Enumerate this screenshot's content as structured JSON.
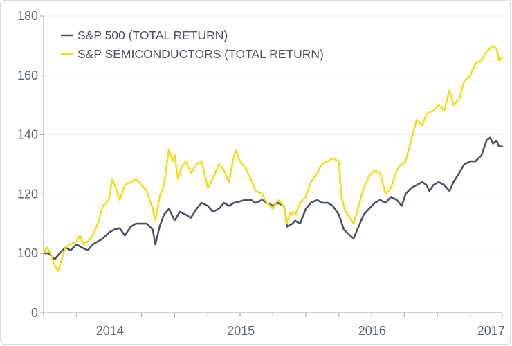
{
  "chart_data": {
    "type": "line",
    "title": "",
    "xlabel": "",
    "ylabel": "",
    "ylim": [
      0,
      180
    ],
    "xlim": [
      "2013-10-01",
      "2017-03-31"
    ],
    "axis_break": "between 0 and 100 on y-axis",
    "y_ticks": [
      "0",
      "100",
      "120",
      "140",
      "160",
      "180"
    ],
    "y_tick_values": [
      0,
      100,
      120,
      140,
      160,
      180
    ],
    "x_tick_labels": [
      {
        "label": "2014",
        "date": "2014-01-01"
      },
      {
        "label": "2015",
        "date": "2015-01-01"
      },
      {
        "label": "2016",
        "date": "2016-01-01"
      },
      {
        "label": "2017",
        "date": "2017-01-01"
      }
    ],
    "legend_placement": "top-left",
    "grid": "horizontal",
    "series": [
      {
        "name": "S&P 500 (TOTAL RETURN)",
        "color": "#4a5366",
        "points": [
          [
            "2013-10-01",
            100
          ],
          [
            "2013-10-15",
            100
          ],
          [
            "2013-11-01",
            98
          ],
          [
            "2013-11-15",
            100
          ],
          [
            "2013-12-01",
            102
          ],
          [
            "2013-12-15",
            101
          ],
          [
            "2014-01-01",
            103
          ],
          [
            "2014-01-15",
            102
          ],
          [
            "2014-02-01",
            101
          ],
          [
            "2014-02-15",
            103
          ],
          [
            "2014-03-01",
            104
          ],
          [
            "2014-03-15",
            105
          ],
          [
            "2014-04-01",
            107
          ],
          [
            "2014-04-15",
            108
          ],
          [
            "2014-05-01",
            108.5
          ],
          [
            "2014-05-15",
            106
          ],
          [
            "2014-06-01",
            109
          ],
          [
            "2014-06-15",
            110
          ],
          [
            "2014-07-01",
            110
          ],
          [
            "2014-07-15",
            110
          ],
          [
            "2014-08-01",
            108
          ],
          [
            "2014-08-08",
            103
          ],
          [
            "2014-08-20",
            109
          ],
          [
            "2014-09-01",
            113
          ],
          [
            "2014-09-15",
            115
          ],
          [
            "2014-10-01",
            111
          ],
          [
            "2014-10-15",
            114
          ],
          [
            "2014-11-01",
            113
          ],
          [
            "2014-11-15",
            112
          ],
          [
            "2014-12-01",
            115
          ],
          [
            "2014-12-15",
            117
          ],
          [
            "2015-01-01",
            116
          ],
          [
            "2015-01-15",
            114
          ],
          [
            "2015-02-01",
            115
          ],
          [
            "2015-02-15",
            117
          ],
          [
            "2015-03-01",
            116
          ],
          [
            "2015-03-15",
            117
          ],
          [
            "2015-04-01",
            117.5
          ],
          [
            "2015-04-15",
            118
          ],
          [
            "2015-05-01",
            118
          ],
          [
            "2015-05-15",
            117
          ],
          [
            "2015-06-01",
            118
          ],
          [
            "2015-06-15",
            117
          ],
          [
            "2015-07-01",
            116
          ],
          [
            "2015-07-15",
            117
          ],
          [
            "2015-08-01",
            116
          ],
          [
            "2015-08-10",
            109
          ],
          [
            "2015-08-25",
            110
          ],
          [
            "2015-09-01",
            111
          ],
          [
            "2015-09-15",
            110
          ],
          [
            "2015-10-01",
            115
          ],
          [
            "2015-10-15",
            117
          ],
          [
            "2015-11-01",
            118
          ],
          [
            "2015-11-15",
            117
          ],
          [
            "2015-12-01",
            117
          ],
          [
            "2015-12-15",
            116
          ],
          [
            "2016-01-01",
            113
          ],
          [
            "2016-01-15",
            108
          ],
          [
            "2016-02-01",
            106
          ],
          [
            "2016-02-11",
            105
          ],
          [
            "2016-02-25",
            109
          ],
          [
            "2016-03-10",
            113
          ],
          [
            "2016-03-25",
            115
          ],
          [
            "2016-04-10",
            117
          ],
          [
            "2016-04-25",
            118
          ],
          [
            "2016-05-10",
            117
          ],
          [
            "2016-05-25",
            119
          ],
          [
            "2016-06-10",
            118
          ],
          [
            "2016-06-24",
            116
          ],
          [
            "2016-07-05",
            120
          ],
          [
            "2016-07-20",
            122
          ],
          [
            "2016-08-05",
            123
          ],
          [
            "2016-08-20",
            124
          ],
          [
            "2016-09-01",
            123
          ],
          [
            "2016-09-09",
            121
          ],
          [
            "2016-09-20",
            123
          ],
          [
            "2016-10-05",
            124
          ],
          [
            "2016-10-20",
            123
          ],
          [
            "2016-11-04",
            121
          ],
          [
            "2016-11-15",
            124
          ],
          [
            "2016-12-01",
            127
          ],
          [
            "2016-12-15",
            130
          ],
          [
            "2017-01-01",
            131
          ],
          [
            "2017-01-15",
            131
          ],
          [
            "2017-02-01",
            133
          ],
          [
            "2017-02-15",
            138
          ],
          [
            "2017-02-25",
            139
          ],
          [
            "2017-03-05",
            137
          ],
          [
            "2017-03-15",
            138
          ],
          [
            "2017-03-22",
            136
          ],
          [
            "2017-03-31",
            136
          ]
        ]
      },
      {
        "name": "S&P SEMICONDUCTORS (TOTAL RETURN)",
        "color": "#f4dc1c",
        "points": [
          [
            "2013-10-01",
            100
          ],
          [
            "2013-10-10",
            102
          ],
          [
            "2013-10-20",
            100
          ],
          [
            "2013-11-01",
            96
          ],
          [
            "2013-11-10",
            94
          ],
          [
            "2013-11-20",
            98
          ],
          [
            "2013-12-01",
            102
          ],
          [
            "2013-12-15",
            103
          ],
          [
            "2014-01-01",
            104
          ],
          [
            "2014-01-10",
            106
          ],
          [
            "2014-01-20",
            103
          ],
          [
            "2014-02-01",
            104
          ],
          [
            "2014-02-15",
            106
          ],
          [
            "2014-03-01",
            110
          ],
          [
            "2014-03-15",
            116
          ],
          [
            "2014-04-01",
            118
          ],
          [
            "2014-04-10",
            125
          ],
          [
            "2014-04-20",
            122
          ],
          [
            "2014-05-01",
            118
          ],
          [
            "2014-05-15",
            123
          ],
          [
            "2014-06-01",
            124
          ],
          [
            "2014-06-15",
            125
          ],
          [
            "2014-07-01",
            123
          ],
          [
            "2014-07-15",
            121
          ],
          [
            "2014-08-01",
            115
          ],
          [
            "2014-08-08",
            111
          ],
          [
            "2014-08-20",
            119
          ],
          [
            "2014-09-01",
            123
          ],
          [
            "2014-09-15",
            135
          ],
          [
            "2014-09-25",
            131
          ],
          [
            "2014-10-01",
            133
          ],
          [
            "2014-10-10",
            125
          ],
          [
            "2014-10-20",
            129
          ],
          [
            "2014-11-01",
            131
          ],
          [
            "2014-11-15",
            127
          ],
          [
            "2014-12-01",
            130
          ],
          [
            "2014-12-15",
            131
          ],
          [
            "2015-01-01",
            122
          ],
          [
            "2015-01-15",
            125
          ],
          [
            "2015-02-01",
            130
          ],
          [
            "2015-02-15",
            128
          ],
          [
            "2015-03-01",
            124
          ],
          [
            "2015-03-10",
            130
          ],
          [
            "2015-03-20",
            135
          ],
          [
            "2015-04-01",
            131
          ],
          [
            "2015-04-15",
            129
          ],
          [
            "2015-05-01",
            125
          ],
          [
            "2015-05-15",
            121
          ],
          [
            "2015-06-01",
            120
          ],
          [
            "2015-06-15",
            117
          ],
          [
            "2015-07-01",
            115
          ],
          [
            "2015-07-15",
            118
          ],
          [
            "2015-08-01",
            116
          ],
          [
            "2015-08-08",
            110
          ],
          [
            "2015-08-20",
            114
          ],
          [
            "2015-09-01",
            113
          ],
          [
            "2015-09-15",
            117
          ],
          [
            "2015-10-01",
            119
          ],
          [
            "2015-10-15",
            124
          ],
          [
            "2015-11-01",
            127
          ],
          [
            "2015-11-15",
            130
          ],
          [
            "2015-12-01",
            131
          ],
          [
            "2015-12-15",
            132
          ],
          [
            "2016-01-01",
            131
          ],
          [
            "2016-01-08",
            119
          ],
          [
            "2016-01-20",
            114
          ],
          [
            "2016-02-01",
            112
          ],
          [
            "2016-02-11",
            110
          ],
          [
            "2016-02-25",
            116
          ],
          [
            "2016-03-10",
            122
          ],
          [
            "2016-03-25",
            126
          ],
          [
            "2016-04-10",
            128
          ],
          [
            "2016-04-25",
            127
          ],
          [
            "2016-05-10",
            120
          ],
          [
            "2016-05-25",
            122
          ],
          [
            "2016-06-10",
            128
          ],
          [
            "2016-06-24",
            130
          ],
          [
            "2016-07-05",
            131
          ],
          [
            "2016-07-20",
            138
          ],
          [
            "2016-08-05",
            145
          ],
          [
            "2016-08-20",
            143
          ],
          [
            "2016-09-01",
            147
          ],
          [
            "2016-09-20",
            148
          ],
          [
            "2016-10-05",
            150
          ],
          [
            "2016-10-20",
            148
          ],
          [
            "2016-11-04",
            155
          ],
          [
            "2016-11-15",
            150
          ],
          [
            "2016-12-01",
            152
          ],
          [
            "2016-12-15",
            158
          ],
          [
            "2017-01-01",
            160
          ],
          [
            "2017-01-15",
            164
          ],
          [
            "2017-02-01",
            165
          ],
          [
            "2017-02-15",
            168
          ],
          [
            "2017-02-25",
            169
          ],
          [
            "2017-03-05",
            170
          ],
          [
            "2017-03-15",
            169
          ],
          [
            "2017-03-22",
            165
          ],
          [
            "2017-03-31",
            166
          ]
        ]
      }
    ]
  }
}
